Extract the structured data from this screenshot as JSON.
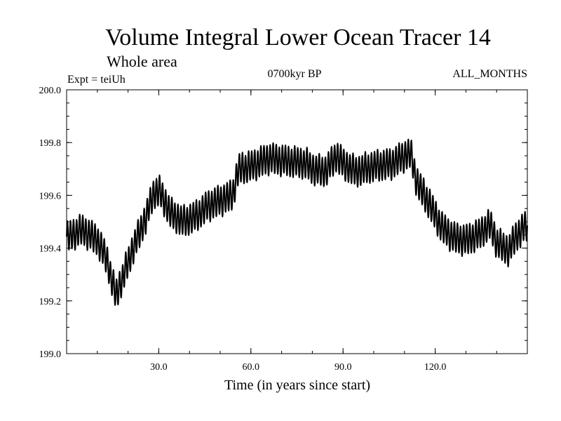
{
  "chart_data": {
    "type": "line",
    "title": "Volume Integral Lower Ocean Tracer 14",
    "subtitle": "Whole area",
    "experiment": "Expt = teiUh",
    "period": "0700kyr BP",
    "months": "ALL_MONTHS",
    "xlabel": "Time (in years since start)",
    "ylabel": "",
    "xlim": [
      0,
      150
    ],
    "ylim": [
      199.0,
      200.0
    ],
    "xticks": [
      30,
      60,
      90,
      120
    ],
    "xtick_labels": [
      "30.0",
      "60.0",
      "90.0",
      "120.0"
    ],
    "yticks": [
      199.0,
      199.2,
      199.4,
      199.6,
      199.8,
      200.0
    ],
    "ytick_labels": [
      "199.0",
      "199.2",
      "199.4",
      "199.6",
      "199.8",
      "200.0"
    ],
    "grid": false,
    "seasonal_cycle_years": 1,
    "seasonal_amplitude": 0.055,
    "series": [
      {
        "name": "Volume Integral Lower Ocean Tracer 14",
        "color": "#000000",
        "trend_x": [
          0,
          5,
          10,
          13,
          16,
          18,
          22,
          26,
          28,
          30,
          34,
          38,
          42,
          46,
          50,
          54,
          56,
          60,
          66,
          72,
          78,
          80,
          84,
          88,
          90,
          94,
          100,
          106,
          110,
          112,
          114,
          118,
          122,
          126,
          130,
          134,
          138,
          140,
          144,
          146,
          150
        ],
        "trend_y": [
          199.44,
          199.47,
          199.43,
          199.36,
          199.22,
          199.28,
          199.41,
          199.52,
          199.6,
          199.62,
          199.53,
          199.5,
          199.52,
          199.56,
          199.58,
          199.6,
          199.7,
          199.71,
          199.74,
          199.73,
          199.72,
          199.7,
          199.69,
          199.75,
          199.72,
          199.69,
          199.71,
          199.72,
          199.75,
          199.76,
          199.65,
          199.57,
          199.48,
          199.44,
          199.43,
          199.45,
          199.49,
          199.42,
          199.39,
          199.44,
          199.49
        ]
      }
    ]
  }
}
